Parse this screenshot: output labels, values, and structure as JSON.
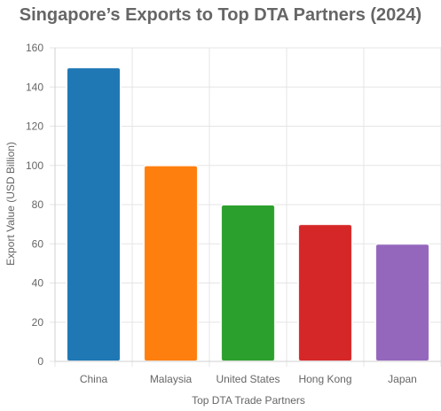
{
  "chart_data": {
    "type": "bar",
    "title": "Singapore’s Exports to Top DTA Partners (2024)",
    "xlabel": "Top DTA Trade Partners",
    "ylabel": "Export Value (USD Billion)",
    "categories": [
      "China",
      "Malaysia",
      "United States",
      "Hong Kong",
      "Japan"
    ],
    "values": [
      150,
      100,
      80,
      70,
      60
    ],
    "colors": [
      "#1f77b4",
      "#ff7f0e",
      "#2ca02c",
      "#d62728",
      "#9467bd"
    ],
    "ylim": [
      0,
      160
    ],
    "yticks": [
      0,
      20,
      40,
      60,
      80,
      100,
      120,
      140,
      160
    ],
    "grid": true,
    "legend": "none"
  }
}
